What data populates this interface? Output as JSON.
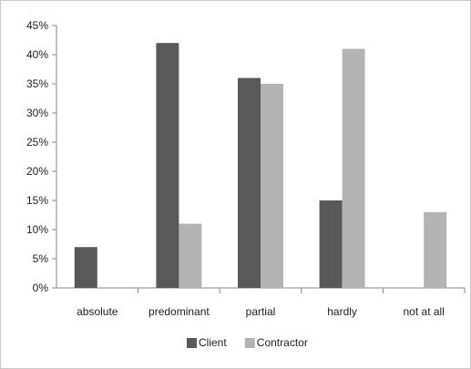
{
  "chart_data": {
    "type": "bar",
    "categories": [
      "absolute",
      "predominant",
      "partial",
      "hardly",
      "not at all"
    ],
    "series": [
      {
        "name": "Client",
        "values": [
          7,
          42,
          36,
          15,
          0
        ],
        "color": "#595959"
      },
      {
        "name": "Contractor",
        "values": [
          0,
          11,
          35,
          41,
          13
        ],
        "color": "#b3b3b3"
      }
    ],
    "ylim": [
      0,
      45
    ],
    "yticks": [
      "0%",
      "5%",
      "10%",
      "15%",
      "20%",
      "25%",
      "30%",
      "35%",
      "40%",
      "45%"
    ],
    "grid": false,
    "legend_position": "bottom"
  }
}
